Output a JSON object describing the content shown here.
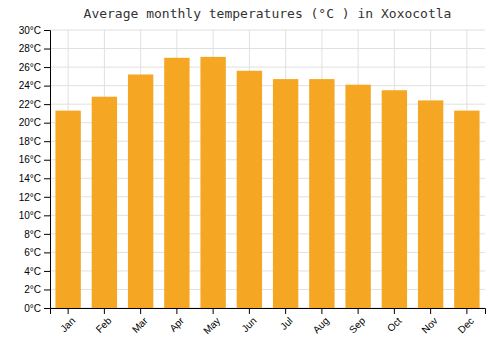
{
  "chart_data": {
    "type": "bar",
    "title": "Average monthly temperatures (°C ) in Xoxocotla",
    "categories": [
      "Jan",
      "Feb",
      "Mar",
      "Apr",
      "May",
      "Jun",
      "Jul",
      "Aug",
      "Sep",
      "Oct",
      "Nov",
      "Dec"
    ],
    "values": [
      21.3,
      22.8,
      25.2,
      27.0,
      27.1,
      25.6,
      24.7,
      24.7,
      24.1,
      23.5,
      22.4,
      21.3
    ],
    "color": "#F5A623",
    "ylim": [
      0,
      30
    ],
    "yticks": [
      {
        "value": 0,
        "label": "0°C"
      },
      {
        "value": 2,
        "label": "2°C"
      },
      {
        "value": 4,
        "label": "4°C"
      },
      {
        "value": 6,
        "label": "6°C"
      },
      {
        "value": 8,
        "label": "8°C"
      },
      {
        "value": 10,
        "label": "10°C"
      },
      {
        "value": 12,
        "label": "12°C"
      },
      {
        "value": 14,
        "label": "14°C"
      },
      {
        "value": 16,
        "label": "16°C"
      },
      {
        "value": 18,
        "label": "18°C"
      },
      {
        "value": 20,
        "label": "20°C"
      },
      {
        "value": 22,
        "label": "22°C"
      },
      {
        "value": 24,
        "label": "24°C"
      },
      {
        "value": 26,
        "label": "26°C"
      },
      {
        "value": 28,
        "label": "28°C"
      },
      {
        "value": 30,
        "label": "30°C"
      }
    ],
    "grid": true
  }
}
